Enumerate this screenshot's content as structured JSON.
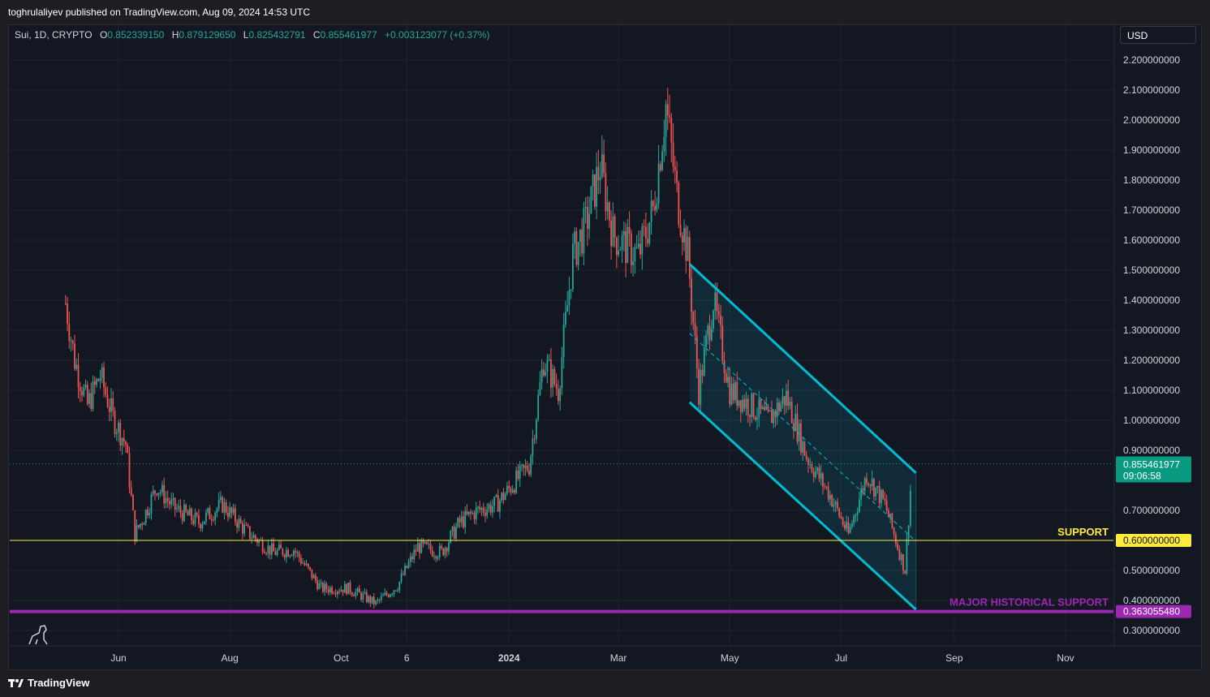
{
  "header": {
    "published": "toghrulaliyev published on TradingView.com, Aug 09, 2024 14:53 UTC"
  },
  "legend": {
    "symbol": "Sui, 1D, CRYPTO",
    "o_label": "O",
    "o_value": "0.852339150",
    "h_label": "H",
    "h_value": "0.879129650",
    "l_label": "L",
    "l_value": "0.825432791",
    "c_label": "C",
    "c_value": "0.855461977",
    "change": "+0.003123077 (+0.37%)"
  },
  "currency": "USD",
  "footer": {
    "brand": "TradingView"
  },
  "colors": {
    "up": "#26a69a",
    "down": "#ef5350",
    "channel": "#00bcd4",
    "support": "#ffeb3b",
    "major_support": "#9c27b0",
    "price_tag": "#089981"
  },
  "chart_data": {
    "type": "candlestick",
    "symbol": "Sui",
    "interval": "1D",
    "ylim": [
      0.27,
      2.25
    ],
    "y_ticks": [
      "2.200000000",
      "2.100000000",
      "2.000000000",
      "1.900000000",
      "1.800000000",
      "1.700000000",
      "1.600000000",
      "1.500000000",
      "1.400000000",
      "1.300000000",
      "1.200000000",
      "1.100000000",
      "1.000000000",
      "0.900000000",
      "0.700000000",
      "0.500000000",
      "0.400000000",
      "0.300000000"
    ],
    "y_tick_values": [
      2.2,
      2.1,
      2.0,
      1.9,
      1.8,
      1.7,
      1.6,
      1.5,
      1.4,
      1.3,
      1.2,
      1.1,
      1.0,
      0.9,
      0.7,
      0.5,
      0.4,
      0.3
    ],
    "x_ticks": [
      {
        "label": "Jun",
        "date": "2023-06-01",
        "bold": false
      },
      {
        "label": "Aug",
        "date": "2023-08-01",
        "bold": false
      },
      {
        "label": "Oct",
        "date": "2023-10-01",
        "bold": false
      },
      {
        "label": "6",
        "date": "2023-11-06",
        "bold": false
      },
      {
        "label": "2024",
        "date": "2024-01-01",
        "bold": true
      },
      {
        "label": "Mar",
        "date": "2024-03-01",
        "bold": false
      },
      {
        "label": "May",
        "date": "2024-05-01",
        "bold": false
      },
      {
        "label": "Jul",
        "date": "2024-07-01",
        "bold": false
      },
      {
        "label": "Sep",
        "date": "2024-09-01",
        "bold": false
      },
      {
        "label": "Nov",
        "date": "2024-11-01",
        "bold": false
      }
    ],
    "x_range": [
      "2023-05-03",
      "2024-11-30"
    ],
    "close_path": [
      {
        "date": "2023-05-03",
        "close": 1.39
      },
      {
        "date": "2023-05-08",
        "close": 1.2
      },
      {
        "date": "2023-05-15",
        "close": 1.05
      },
      {
        "date": "2023-05-22",
        "close": 1.15
      },
      {
        "date": "2023-05-29",
        "close": 1.01
      },
      {
        "date": "2023-06-05",
        "close": 0.92
      },
      {
        "date": "2023-06-10",
        "close": 0.62
      },
      {
        "date": "2023-06-15",
        "close": 0.68
      },
      {
        "date": "2023-06-22",
        "close": 0.78
      },
      {
        "date": "2023-07-01",
        "close": 0.71
      },
      {
        "date": "2023-07-15",
        "close": 0.66
      },
      {
        "date": "2023-07-28",
        "close": 0.72
      },
      {
        "date": "2023-08-10",
        "close": 0.63
      },
      {
        "date": "2023-08-25",
        "close": 0.56
      },
      {
        "date": "2023-09-05",
        "close": 0.57
      },
      {
        "date": "2023-09-20",
        "close": 0.44
      },
      {
        "date": "2023-10-05",
        "close": 0.44
      },
      {
        "date": "2023-10-20",
        "close": 0.39
      },
      {
        "date": "2023-11-01",
        "close": 0.45
      },
      {
        "date": "2023-11-12",
        "close": 0.58
      },
      {
        "date": "2023-11-25",
        "close": 0.56
      },
      {
        "date": "2023-12-05",
        "close": 0.66
      },
      {
        "date": "2023-12-15",
        "close": 0.7
      },
      {
        "date": "2023-12-25",
        "close": 0.72
      },
      {
        "date": "2024-01-05",
        "close": 0.8
      },
      {
        "date": "2024-01-12",
        "close": 0.85
      },
      {
        "date": "2024-01-20",
        "close": 1.2
      },
      {
        "date": "2024-01-28",
        "close": 1.1
      },
      {
        "date": "2024-02-05",
        "close": 1.55
      },
      {
        "date": "2024-02-12",
        "close": 1.65
      },
      {
        "date": "2024-02-20",
        "close": 1.85
      },
      {
        "date": "2024-02-27",
        "close": 1.62
      },
      {
        "date": "2024-03-05",
        "close": 1.58
      },
      {
        "date": "2024-03-12",
        "close": 1.55
      },
      {
        "date": "2024-03-20",
        "close": 1.7
      },
      {
        "date": "2024-03-27",
        "close": 2.05
      },
      {
        "date": "2024-04-02",
        "close": 1.75
      },
      {
        "date": "2024-04-08",
        "close": 1.55
      },
      {
        "date": "2024-04-14",
        "close": 1.1
      },
      {
        "date": "2024-04-22",
        "close": 1.4
      },
      {
        "date": "2024-05-01",
        "close": 1.1
      },
      {
        "date": "2024-05-12",
        "close": 1.05
      },
      {
        "date": "2024-05-22",
        "close": 1.0
      },
      {
        "date": "2024-06-01",
        "close": 1.08
      },
      {
        "date": "2024-06-12",
        "close": 0.88
      },
      {
        "date": "2024-06-25",
        "close": 0.75
      },
      {
        "date": "2024-07-05",
        "close": 0.62
      },
      {
        "date": "2024-07-15",
        "close": 0.82
      },
      {
        "date": "2024-07-25",
        "close": 0.72
      },
      {
        "date": "2024-08-05",
        "close": 0.5
      },
      {
        "date": "2024-08-09",
        "close": 0.855
      }
    ],
    "annotations": {
      "channel_upper": [
        {
          "date": "2024-04-09",
          "price": 1.52
        },
        {
          "date": "2024-08-11",
          "price": 0.825
        }
      ],
      "channel_lower": [
        {
          "date": "2024-04-09",
          "price": 1.06
        },
        {
          "date": "2024-08-11",
          "price": 0.37
        }
      ],
      "channel_mid": [
        {
          "date": "2024-04-09",
          "price": 1.29
        },
        {
          "date": "2024-08-11",
          "price": 0.597
        }
      ],
      "support": {
        "label": "SUPPORT",
        "price": 0.6,
        "tag": "0.600000000"
      },
      "major_support": {
        "label": "MAJOR HISTORICAL SUPPORT",
        "price": 0.36305548,
        "tag": "0.363055480"
      },
      "last_price": {
        "price": 0.855461977,
        "tag": "0.855461977",
        "countdown": "09:06:58"
      }
    }
  }
}
